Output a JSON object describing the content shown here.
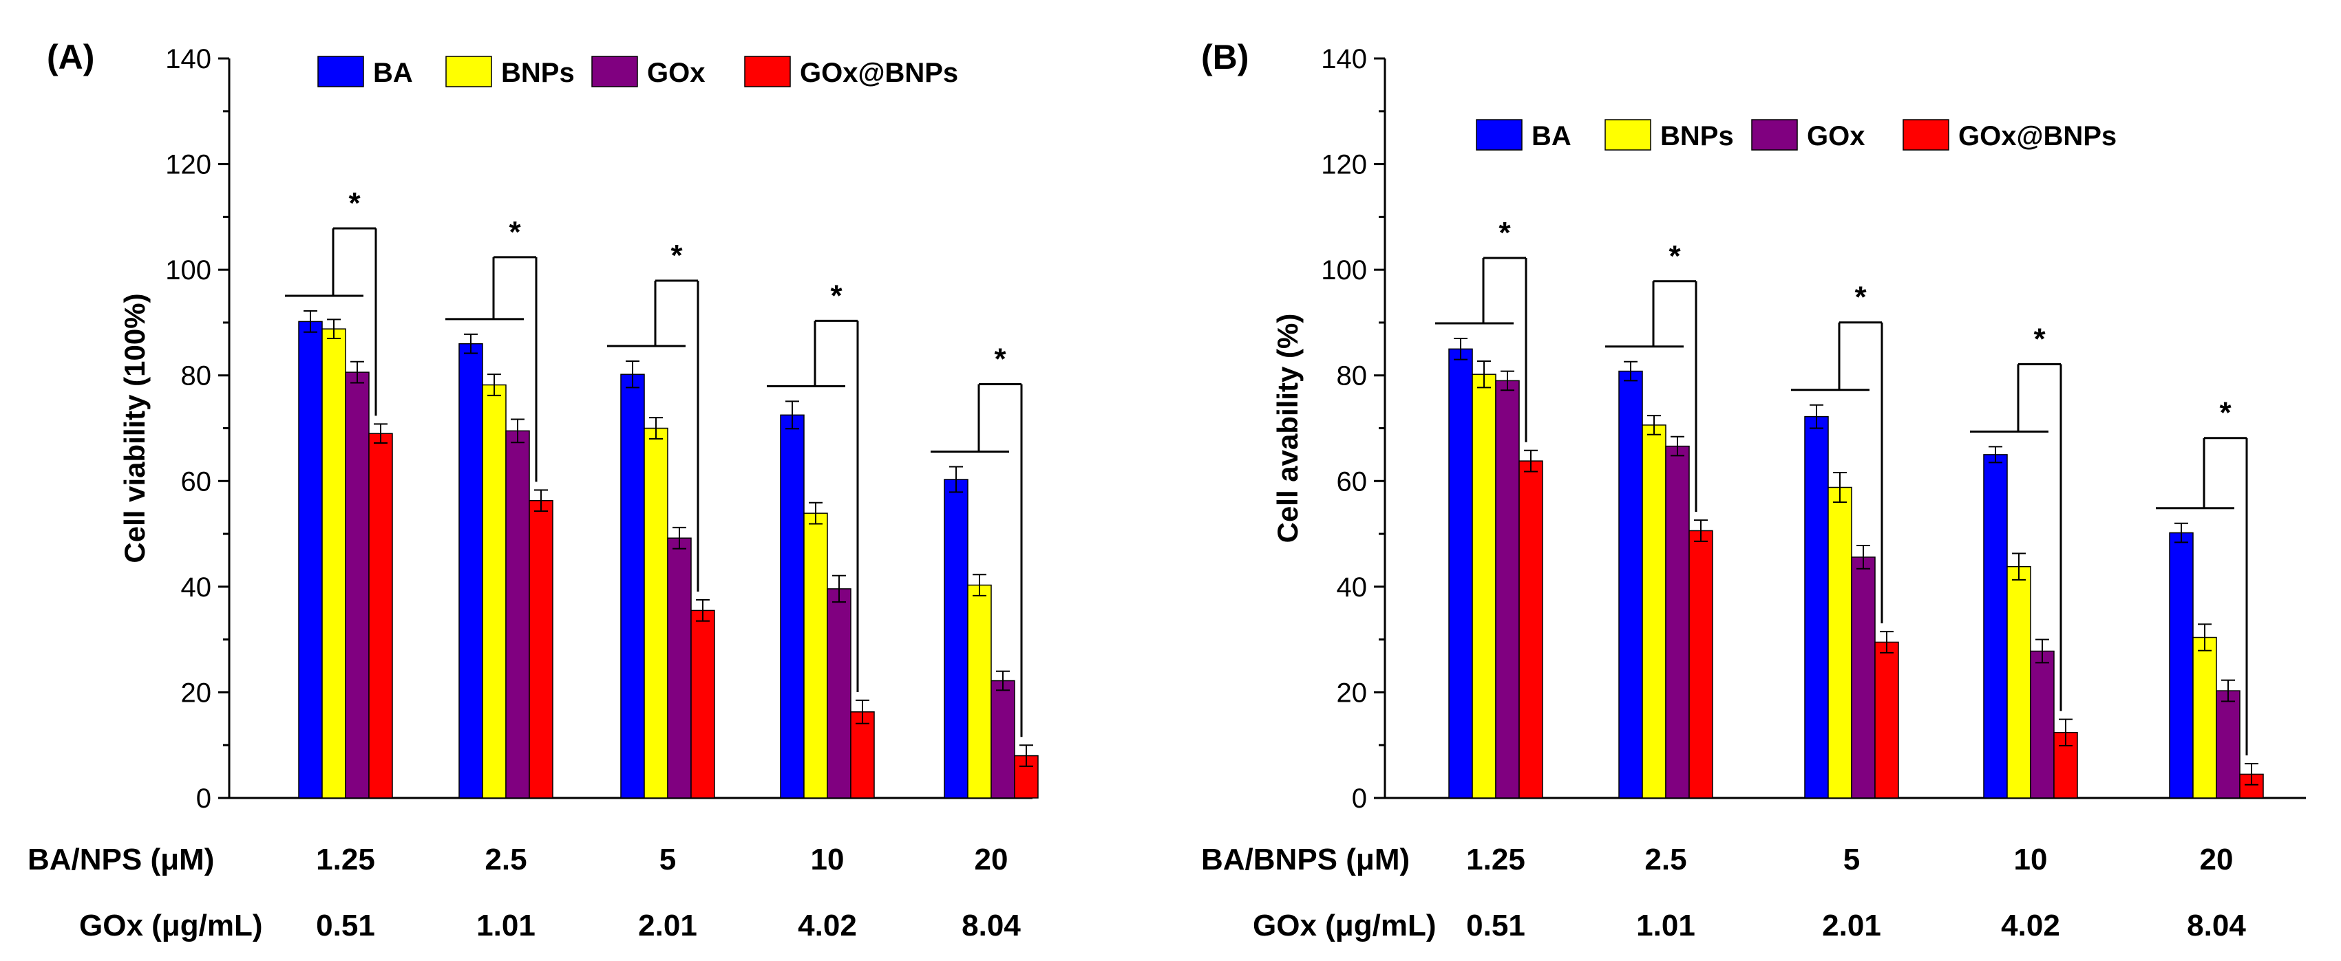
{
  "chart_data": [
    {
      "type": "bar",
      "panel_label": "(A)",
      "ylabel": "Cell viability (100%)",
      "ylim": [
        0,
        140
      ],
      "yticks": [
        0,
        20,
        40,
        60,
        80,
        100,
        120,
        140
      ],
      "categories": [
        "1.25",
        "2.5",
        "5",
        "10",
        "20"
      ],
      "row_labels": [
        "BA/NPS (μM)",
        "GOx (μg/mL)"
      ],
      "gox_values": [
        "0.51",
        "1.01",
        "2.01",
        "4.02",
        "8.04"
      ],
      "legend": [
        "BA",
        "BNPs",
        "GOx",
        "GOx@BNPs"
      ],
      "significance": [
        "*",
        "*",
        "*",
        "*",
        "*"
      ],
      "series": [
        {
          "name": "BA",
          "color": "#0000ff",
          "values": [
            90.2,
            86.0,
            80.2,
            72.5,
            60.3
          ],
          "errors": [
            2.0,
            1.8,
            2.5,
            2.6,
            2.4
          ]
        },
        {
          "name": "BNPs",
          "color": "#ffff00",
          "values": [
            88.8,
            78.2,
            70.0,
            53.9,
            40.3
          ],
          "errors": [
            1.8,
            2.0,
            2.0,
            2.0,
            2.0
          ]
        },
        {
          "name": "GOx",
          "color": "#800080",
          "values": [
            80.6,
            69.5,
            49.2,
            39.6,
            22.2
          ],
          "errors": [
            2.0,
            2.2,
            2.0,
            2.5,
            1.8
          ]
        },
        {
          "name": "GOx@BNPs",
          "color": "#ff0000",
          "values": [
            69.0,
            56.3,
            35.5,
            16.3,
            8.0
          ],
          "errors": [
            1.8,
            2.0,
            2.0,
            2.2,
            2.0
          ]
        }
      ]
    },
    {
      "type": "bar",
      "panel_label": "(B)",
      "ylabel": "Cell avability (%)",
      "ylim": [
        0,
        140
      ],
      "yticks": [
        0,
        20,
        40,
        60,
        80,
        100,
        120,
        140
      ],
      "categories": [
        "1.25",
        "2.5",
        "5",
        "10",
        "20"
      ],
      "row_labels": [
        "BA/BNPS (μM)",
        "GOx (μg/mL)"
      ],
      "gox_values": [
        "0.51",
        "1.01",
        "2.01",
        "4.02",
        "8.04"
      ],
      "legend": [
        "BA",
        "BNPs",
        "GOx",
        "GOx@BNPs"
      ],
      "significance": [
        "*",
        "*",
        "*",
        "*",
        "*"
      ],
      "series": [
        {
          "name": "BA",
          "color": "#0000ff",
          "values": [
            85.0,
            80.8,
            72.2,
            65.0,
            50.2
          ],
          "errors": [
            2.0,
            1.8,
            2.2,
            1.5,
            1.8
          ]
        },
        {
          "name": "BNPs",
          "color": "#ffff00",
          "values": [
            80.2,
            70.6,
            58.8,
            43.8,
            30.4
          ],
          "errors": [
            2.5,
            1.8,
            2.8,
            2.5,
            2.5
          ]
        },
        {
          "name": "GOx",
          "color": "#800080",
          "values": [
            79.0,
            66.6,
            45.6,
            27.8,
            20.3
          ],
          "errors": [
            1.8,
            1.8,
            2.2,
            2.2,
            2.0
          ]
        },
        {
          "name": "GOx@BNPs",
          "color": "#ff0000",
          "values": [
            63.8,
            50.6,
            29.5,
            12.4,
            4.5
          ],
          "errors": [
            2.0,
            2.0,
            2.0,
            2.5,
            2.0
          ]
        }
      ]
    }
  ]
}
